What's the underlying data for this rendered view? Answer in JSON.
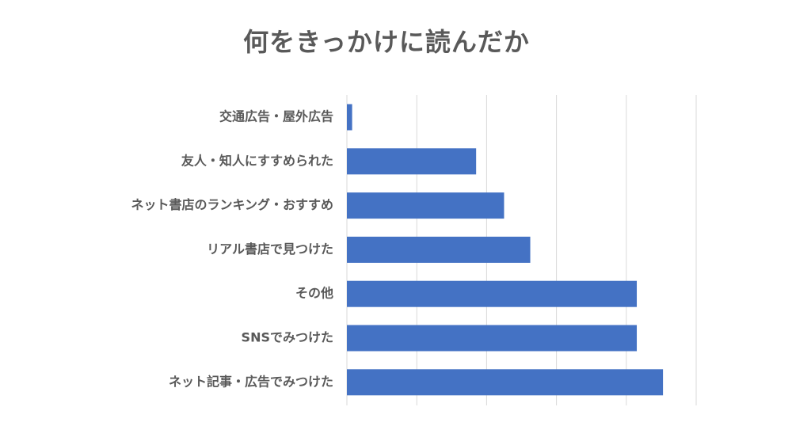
{
  "chart_data": {
    "type": "bar",
    "orientation": "horizontal",
    "title": "何をきっかけに読んだか",
    "xlabel": "",
    "ylabel": "",
    "categories": [
      "交通広告・屋外広告",
      "友人・知人にすすめられた",
      "ネット書店のランキング・おすすめ",
      "リアル書店で見つけた",
      "その他",
      "SNSでみつけた",
      "ネット記事・広告でみつけた"
    ],
    "values": [
      1.5,
      37,
      45,
      52.5,
      83,
      83,
      90.5
    ],
    "xlim": [
      0,
      100
    ],
    "grid": true,
    "tick_labels_shown": false,
    "legend": false,
    "bar_color": "#4472c4",
    "grid_color": "#d9d9d9",
    "text_color": "#595959"
  }
}
